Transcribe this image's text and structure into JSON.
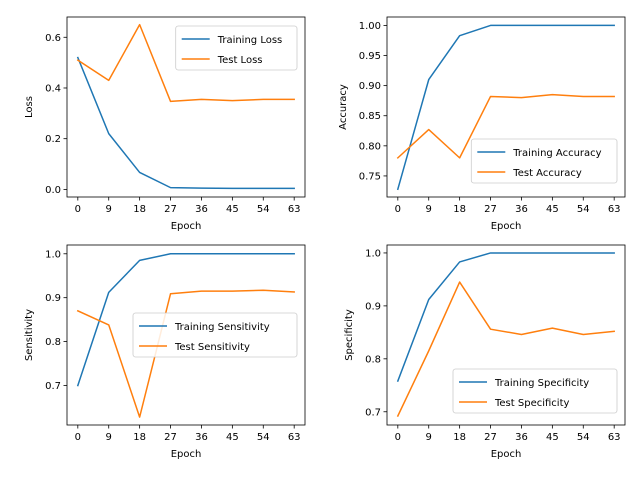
{
  "chart_data": [
    {
      "type": "line",
      "xlabel": "Epoch",
      "ylabel": "Loss",
      "x": [
        0,
        9,
        18,
        27,
        36,
        45,
        54,
        63
      ],
      "xticks": [
        "0",
        "9",
        "18",
        "27",
        "36",
        "45",
        "54",
        "63"
      ],
      "xlim": [
        -3.15,
        66.15
      ],
      "ylim": [
        -0.03,
        0.68
      ],
      "yticks": [
        "0.0",
        "0.2",
        "0.4",
        "0.6"
      ],
      "ytick_values": [
        0.0,
        0.2,
        0.4,
        0.6
      ],
      "legend": "top-right",
      "grid": false,
      "series": [
        {
          "name": "Training Loss",
          "color": "#1f77b4",
          "values": [
            0.52,
            0.22,
            0.067,
            0.007,
            0.005,
            0.004,
            0.004,
            0.004
          ]
        },
        {
          "name": "Test Loss",
          "color": "#ff7f0e",
          "values": [
            0.51,
            0.43,
            0.65,
            0.347,
            0.355,
            0.35,
            0.355,
            0.355
          ]
        }
      ]
    },
    {
      "type": "line",
      "xlabel": "Epoch",
      "ylabel": "Accuracy",
      "x": [
        0,
        9,
        18,
        27,
        36,
        45,
        54,
        63
      ],
      "xticks": [
        "0",
        "9",
        "18",
        "27",
        "36",
        "45",
        "54",
        "63"
      ],
      "xlim": [
        -3.15,
        66.15
      ],
      "ylim": [
        0.715,
        1.014
      ],
      "yticks": [
        "0.75",
        "0.80",
        "0.85",
        "0.90",
        "0.95",
        "1.00"
      ],
      "ytick_values": [
        0.75,
        0.8,
        0.85,
        0.9,
        0.95,
        1.0
      ],
      "legend": "bottom-right",
      "grid": false,
      "series": [
        {
          "name": "Training Accuracy",
          "color": "#1f77b4",
          "values": [
            0.728,
            0.91,
            0.983,
            1.0,
            1.0,
            1.0,
            1.0,
            1.0
          ]
        },
        {
          "name": "Test Accuracy",
          "color": "#ff7f0e",
          "values": [
            0.78,
            0.827,
            0.78,
            0.882,
            0.88,
            0.885,
            0.882,
            0.882
          ]
        }
      ]
    },
    {
      "type": "line",
      "xlabel": "Epoch",
      "ylabel": "Sensitivity",
      "x": [
        0,
        9,
        18,
        27,
        36,
        45,
        54,
        63
      ],
      "xticks": [
        "0",
        "9",
        "18",
        "27",
        "36",
        "45",
        "54",
        "63"
      ],
      "xlim": [
        -3.15,
        66.15
      ],
      "ylim": [
        0.61,
        1.02
      ],
      "yticks": [
        "0.7",
        "0.8",
        "0.9",
        "1.0"
      ],
      "ytick_values": [
        0.7,
        0.8,
        0.9,
        1.0
      ],
      "legend": "center-right",
      "grid": false,
      "series": [
        {
          "name": "Training Sensitivity",
          "color": "#1f77b4",
          "values": [
            0.7,
            0.912,
            0.985,
            1.0,
            1.0,
            1.0,
            1.0,
            1.0
          ]
        },
        {
          "name": "Test Sensitivity",
          "color": "#ff7f0e",
          "values": [
            0.87,
            0.838,
            0.628,
            0.909,
            0.915,
            0.915,
            0.917,
            0.913
          ]
        }
      ]
    },
    {
      "type": "line",
      "xlabel": "Epoch",
      "ylabel": "Specificity",
      "x": [
        0,
        9,
        18,
        27,
        36,
        45,
        54,
        63
      ],
      "xticks": [
        "0",
        "9",
        "18",
        "27",
        "36",
        "45",
        "54",
        "63"
      ],
      "xlim": [
        -3.15,
        66.15
      ],
      "ylim": [
        0.675,
        1.015
      ],
      "yticks": [
        "0.7",
        "0.8",
        "0.9",
        "1.0"
      ],
      "ytick_values": [
        0.7,
        0.8,
        0.9,
        1.0
      ],
      "legend": "bottom-right",
      "grid": false,
      "series": [
        {
          "name": "Training Specificity",
          "color": "#1f77b4",
          "values": [
            0.758,
            0.912,
            0.983,
            1.0,
            1.0,
            1.0,
            1.0,
            1.0
          ]
        },
        {
          "name": "Test Specificity",
          "color": "#ff7f0e",
          "values": [
            0.692,
            0.815,
            0.945,
            0.856,
            0.846,
            0.858,
            0.846,
            0.852
          ]
        }
      ]
    }
  ]
}
